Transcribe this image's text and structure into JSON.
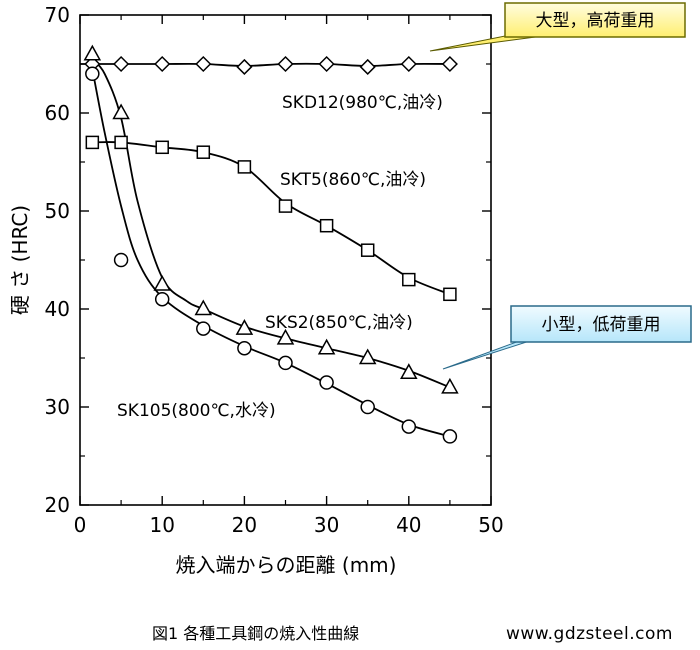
{
  "chart_data": {
    "type": "line",
    "xlabel": "焼入端からの距離 (mm)",
    "ylabel": "硬 さ (HRC)",
    "xlim": [
      0,
      50
    ],
    "ylim": [
      20,
      70
    ],
    "xticks": [
      0,
      10,
      20,
      30,
      40,
      50
    ],
    "yticks": [
      20,
      30,
      40,
      50,
      60,
      70
    ],
    "grid": false,
    "series": [
      {
        "name": "SKD12(980℃,油冷)",
        "marker": "diamond",
        "x": [
          1.5,
          5,
          10,
          15,
          20,
          25,
          30,
          35,
          40,
          45
        ],
        "y": [
          65,
          65,
          65,
          65,
          64.7,
          65,
          65,
          64.7,
          65,
          65
        ],
        "curve": [
          [
            0,
            65
          ],
          [
            5,
            65
          ],
          [
            10,
            65
          ],
          [
            15,
            65
          ],
          [
            20,
            64.8
          ],
          [
            25,
            65
          ],
          [
            30,
            65
          ],
          [
            35,
            64.8
          ],
          [
            40,
            65
          ],
          [
            45,
            65
          ]
        ]
      },
      {
        "name": "SKT5(860℃,油冷)",
        "marker": "square",
        "x": [
          1.5,
          5,
          10,
          15,
          20,
          25,
          30,
          35,
          40,
          45
        ],
        "y": [
          57,
          57,
          56.5,
          56,
          54.5,
          50.5,
          48.5,
          46,
          43,
          41.5
        ],
        "curve": [
          [
            1.5,
            57
          ],
          [
            5,
            57
          ],
          [
            10,
            56.5
          ],
          [
            15,
            56
          ],
          [
            20,
            54.5
          ],
          [
            25,
            50.8
          ],
          [
            30,
            48.5
          ],
          [
            35,
            46
          ],
          [
            40,
            43.2
          ],
          [
            45,
            41.5
          ]
        ]
      },
      {
        "name": "SKS2(850℃,油冷)",
        "marker": "triangle",
        "x": [
          1.5,
          5,
          10,
          15,
          20,
          25,
          30,
          35,
          40,
          45
        ],
        "y": [
          66,
          60,
          42.5,
          40,
          38,
          37,
          36,
          35,
          33.5,
          32
        ],
        "curve": [
          [
            1.5,
            65.5
          ],
          [
            3,
            64
          ],
          [
            5,
            59.5
          ],
          [
            7,
            51
          ],
          [
            10,
            43.2
          ],
          [
            13,
            40.8
          ],
          [
            15,
            40
          ],
          [
            20,
            38.2
          ],
          [
            25,
            37
          ],
          [
            30,
            36
          ],
          [
            35,
            35
          ],
          [
            40,
            33.7
          ],
          [
            45,
            32
          ]
        ]
      },
      {
        "name": "SK105(800℃,水冷)",
        "marker": "circle",
        "x": [
          1.5,
          5,
          10,
          15,
          20,
          25,
          30,
          35,
          40,
          45
        ],
        "y": [
          64,
          45,
          41,
          38,
          36,
          34.5,
          32.5,
          30,
          28,
          27
        ],
        "curve": [
          [
            1.5,
            64.5
          ],
          [
            3,
            58
          ],
          [
            5,
            50.5
          ],
          [
            7,
            45
          ],
          [
            10,
            41.2
          ],
          [
            15,
            38.3
          ],
          [
            20,
            36.2
          ],
          [
            25,
            34.5
          ],
          [
            30,
            32.4
          ],
          [
            35,
            30.2
          ],
          [
            40,
            28.2
          ],
          [
            45,
            27
          ]
        ]
      }
    ],
    "annotations": [
      {
        "text": "大型，高荷重用",
        "style": "callout-yellow",
        "points_to": [
          40,
          65.3
        ]
      },
      {
        "text": "小型，低荷重用",
        "style": "callout-blue",
        "points_to": [
          41.5,
          33.6
        ]
      }
    ],
    "caption": "図1  各種工具鋼の焼入性曲線"
  },
  "watermark": "www.gdzsteel.com",
  "colors": {
    "callout_yellow": "#ffff99",
    "callout_blue": "#cceeff",
    "line": "#000000"
  }
}
